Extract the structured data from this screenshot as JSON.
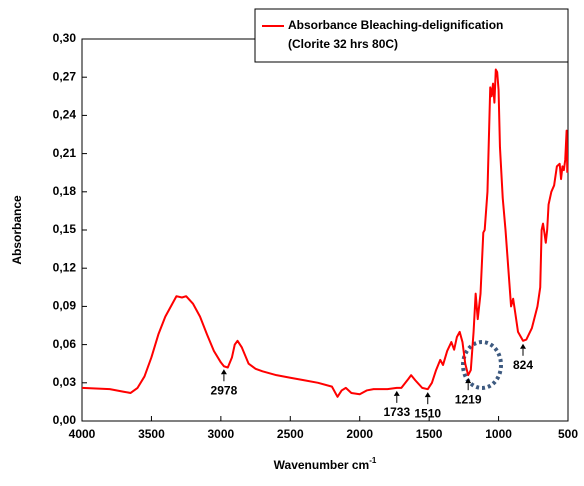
{
  "chart_data": {
    "type": "line",
    "x_label": "Wavenumber cm",
    "x_label_superscript": "-1",
    "y_label": "Absorbance",
    "xlim": [
      4000,
      500
    ],
    "ylim": [
      0,
      0.3
    ],
    "xticks": [
      4000,
      3500,
      3000,
      2500,
      2000,
      1500,
      1000,
      500
    ],
    "yticks": [
      {
        "value": 0,
        "label": "0,00"
      },
      {
        "value": 0.03,
        "label": "0,03"
      },
      {
        "value": 0.06,
        "label": "0,06"
      },
      {
        "value": 0.09,
        "label": "0,09"
      },
      {
        "value": 0.12,
        "label": "0,12"
      },
      {
        "value": 0.15,
        "label": "0,15"
      },
      {
        "value": 0.18,
        "label": "0,18"
      },
      {
        "value": 0.21,
        "label": "0,21"
      },
      {
        "value": 0.24,
        "label": "0,24"
      },
      {
        "value": 0.27,
        "label": "0,27"
      },
      {
        "value": 0.3,
        "label": "0,30"
      }
    ],
    "legend_note": "(Clorite 32 hrs 80C)",
    "x": [
      4000,
      3800,
      3700,
      3650,
      3600,
      3550,
      3500,
      3450,
      3400,
      3350,
      3320,
      3280,
      3250,
      3200,
      3150,
      3100,
      3050,
      3000,
      2978,
      2950,
      2920,
      2900,
      2880,
      2850,
      2800,
      2750,
      2700,
      2600,
      2500,
      2400,
      2300,
      2200,
      2160,
      2130,
      2100,
      2060,
      2000,
      1950,
      1900,
      1800,
      1733,
      1700,
      1650,
      1630,
      1600,
      1550,
      1510,
      1480,
      1450,
      1420,
      1400,
      1370,
      1340,
      1320,
      1300,
      1280,
      1260,
      1240,
      1219,
      1200,
      1180,
      1165,
      1150,
      1130,
      1110,
      1100,
      1080,
      1060,
      1050,
      1040,
      1030,
      1020,
      1010,
      1000,
      990,
      970,
      950,
      930,
      910,
      895,
      880,
      860,
      824,
      800,
      760,
      720,
      700,
      690,
      680,
      670,
      660,
      650,
      640,
      620,
      600,
      580,
      560,
      550,
      540,
      530,
      520,
      510,
      505
    ],
    "series": [
      {
        "name": "Absorbance Bleaching-delignification",
        "color": "#ff0000",
        "values": [
          0.026,
          0.025,
          0.023,
          0.022,
          0.026,
          0.035,
          0.05,
          0.068,
          0.082,
          0.092,
          0.098,
          0.097,
          0.098,
          0.092,
          0.082,
          0.068,
          0.055,
          0.046,
          0.043,
          0.042,
          0.05,
          0.06,
          0.063,
          0.058,
          0.045,
          0.041,
          0.039,
          0.036,
          0.034,
          0.032,
          0.03,
          0.027,
          0.019,
          0.024,
          0.026,
          0.022,
          0.021,
          0.024,
          0.025,
          0.025,
          0.026,
          0.026,
          0.033,
          0.036,
          0.032,
          0.026,
          0.025,
          0.03,
          0.04,
          0.048,
          0.044,
          0.055,
          0.062,
          0.056,
          0.066,
          0.07,
          0.062,
          0.045,
          0.036,
          0.04,
          0.07,
          0.1,
          0.08,
          0.1,
          0.148,
          0.15,
          0.18,
          0.262,
          0.255,
          0.265,
          0.25,
          0.276,
          0.274,
          0.26,
          0.215,
          0.175,
          0.15,
          0.12,
          0.09,
          0.096,
          0.085,
          0.07,
          0.063,
          0.064,
          0.073,
          0.09,
          0.105,
          0.15,
          0.155,
          0.148,
          0.14,
          0.15,
          0.17,
          0.18,
          0.185,
          0.2,
          0.202,
          0.19,
          0.2,
          0.197,
          0.205,
          0.228,
          0.195
        ]
      }
    ],
    "annotations": [
      {
        "text": "2978",
        "x": 2978
      },
      {
        "text": "1733",
        "x": 1733
      },
      {
        "text": "1510",
        "x": 1510
      },
      {
        "text": "1219",
        "x": 1219
      },
      {
        "text": "824",
        "x": 824
      }
    ]
  }
}
